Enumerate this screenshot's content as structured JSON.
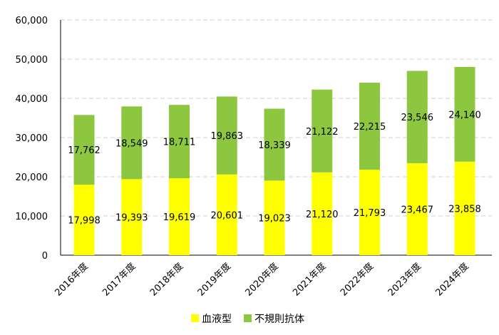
{
  "chart_data": {
    "type": "bar",
    "stacked": true,
    "title": "",
    "xlabel": "",
    "ylabel": "",
    "ylim": [
      0,
      60000
    ],
    "yticks": [
      0,
      10000,
      20000,
      30000,
      40000,
      50000,
      60000
    ],
    "ytick_labels": [
      "0",
      "10,000",
      "20,000",
      "30,000",
      "40,000",
      "50,000",
      "60,000"
    ],
    "grid": true,
    "legend_position": "bottom",
    "categories": [
      "2016年度",
      "2017年度",
      "2018年度",
      "2019年度",
      "2020年度",
      "2021年度",
      "2022年度",
      "2023年度",
      "2024年度"
    ],
    "series": [
      {
        "name": "血液型",
        "color": "#ffff00",
        "values": [
          17998,
          19393,
          19619,
          20601,
          19023,
          21120,
          21793,
          23467,
          23858
        ],
        "labels": [
          "17,998",
          "19,393",
          "19,619",
          "20,601",
          "19,023",
          "21,120",
          "21,793",
          "23,467",
          "23,858"
        ]
      },
      {
        "name": "不規則抗体",
        "color": "#8dc63f",
        "values": [
          17762,
          18549,
          18711,
          19863,
          18339,
          21122,
          22215,
          23546,
          24140
        ],
        "labels": [
          "17,762",
          "18,549",
          "18,711",
          "19,863",
          "18,339",
          "21,122",
          "22,215",
          "23,546",
          "24,140"
        ]
      }
    ]
  }
}
